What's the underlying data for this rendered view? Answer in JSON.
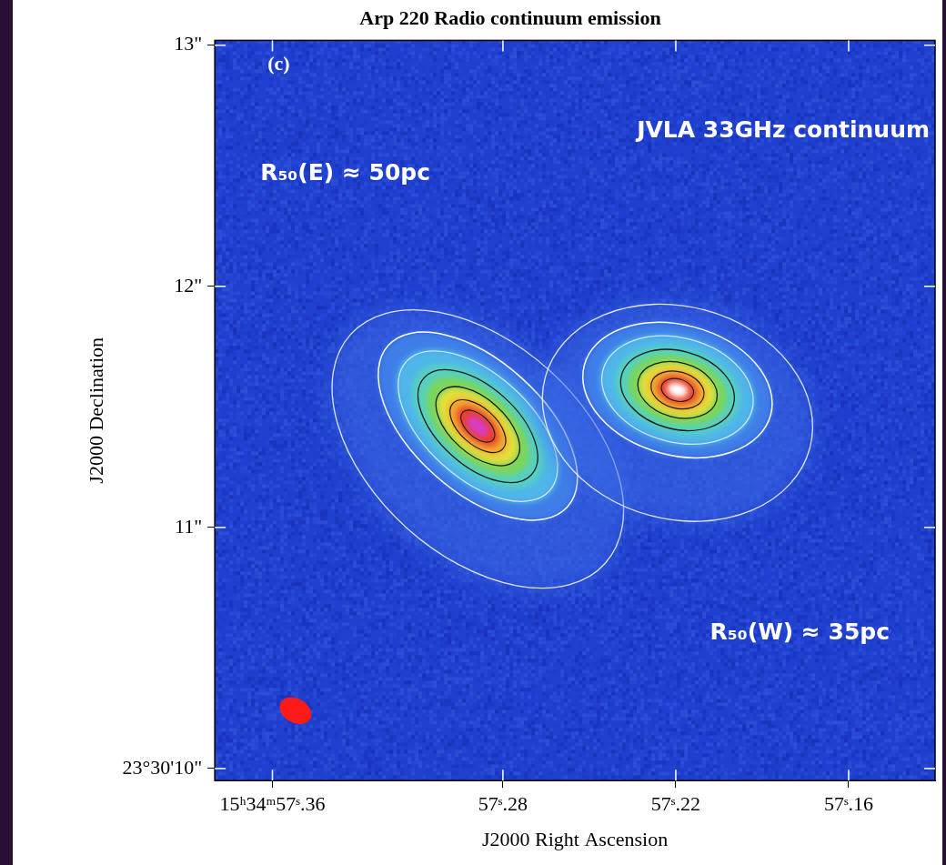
{
  "chart_data": {
    "type": "image",
    "title": "Arp 220 Radio continuum emission",
    "x_label": "J2000 Right Ascension",
    "y_label": "J2000 Declination",
    "panel_label": "(c)",
    "annotations": [
      "JVLA 33GHz continuum",
      "R₅₀(E) ≈ 50pc",
      "R₅₀(W) ≈ 35pc"
    ],
    "xlim": [
      57.38,
      57.13
    ],
    "xticks": [
      {
        "value": 57.36,
        "label": "15ʰ34ᵐ57ˢ.36"
      },
      {
        "value": 57.28,
        "label": "57ˢ.28"
      },
      {
        "value": 57.22,
        "label": "57ˢ.22"
      },
      {
        "value": 57.16,
        "label": "57ˢ.16"
      }
    ],
    "ylim": [
      9.95,
      13.02
    ],
    "yticks": [
      {
        "value": 10,
        "label": "23°30'10\""
      },
      {
        "value": 11,
        "label": "11\""
      },
      {
        "value": 12,
        "label": "12\""
      },
      {
        "value": 13,
        "label": "13\""
      }
    ],
    "grid": false,
    "sources": [
      {
        "ra": 57.2887,
        "dec": 11.42,
        "major": 0.5,
        "minor": 0.27,
        "pa": 48,
        "color": "#d83cc8"
      },
      {
        "ra": 57.2194,
        "dec": 11.57,
        "major": 0.4,
        "minor": 0.27,
        "pa": 75,
        "color": "#ffffff"
      }
    ],
    "beam": {
      "ra": 57.352,
      "dec": 10.24,
      "major": 0.07,
      "minor": 0.05,
      "pa": 60,
      "color": "#ff1a1a"
    }
  }
}
